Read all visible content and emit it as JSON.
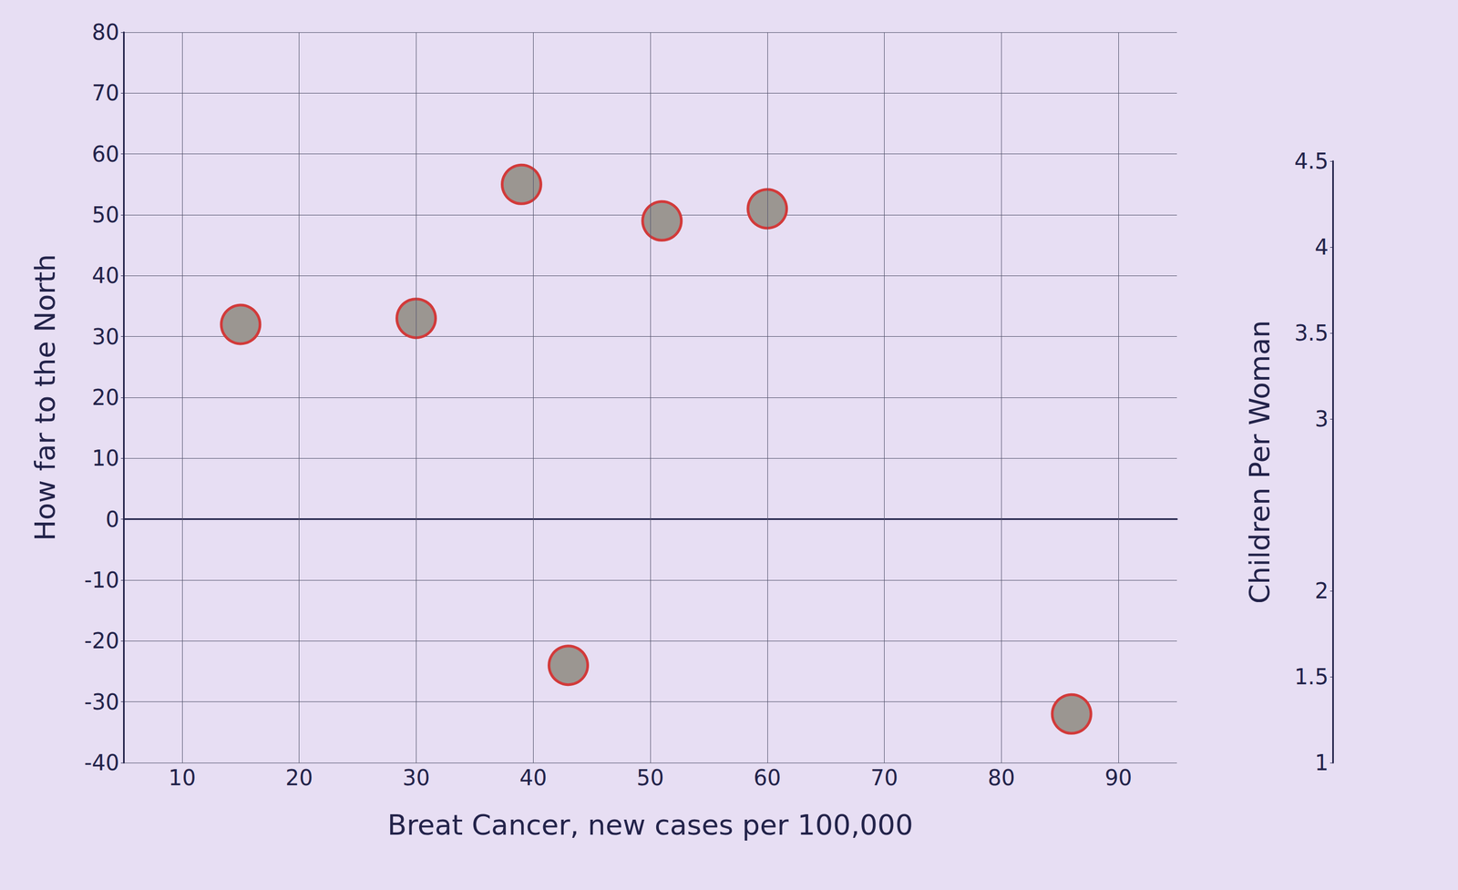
{
  "chart_data": [
    {
      "type": "scatter",
      "xlabel": "Breat Cancer, new cases per 100,000",
      "ylabel": "How far to the North",
      "x": [
        15,
        30,
        39,
        51,
        60,
        43,
        86
      ],
      "values": [
        32,
        33,
        55,
        49,
        51,
        -24,
        -32
      ],
      "color": "#9b9691",
      "marker": "circle",
      "xlim": [
        5,
        95
      ],
      "xticks": [
        10,
        20,
        30,
        40,
        50,
        60,
        70,
        80,
        90
      ],
      "ylim": [
        -40,
        80
      ],
      "yticks": [
        -40,
        -30,
        -20,
        -10,
        0,
        10,
        20,
        30,
        40,
        50,
        60,
        70,
        80
      ],
      "grid": true
    },
    {
      "type": "scatter",
      "ylabel": "Children Per Woman",
      "ylim": [
        1,
        4.5
      ],
      "yticks": [
        1,
        1.5,
        2,
        3,
        3.5,
        4,
        4.5
      ],
      "tick_labels": "y"
    }
  ]
}
